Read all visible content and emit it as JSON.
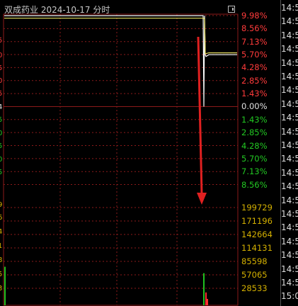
{
  "header": {
    "title": "双成药业  2024-10-17 分时"
  },
  "price_axis": [
    {
      "label": "9.98%",
      "color": "#ff3b3b"
    },
    {
      "label": "8.56%",
      "color": "#ff3b3b"
    },
    {
      "label": "7.13%",
      "color": "#ff3b3b"
    },
    {
      "label": "5.70%",
      "color": "#ff3b3b"
    },
    {
      "label": "4.28%",
      "color": "#ff3b3b"
    },
    {
      "label": "2.85%",
      "color": "#ff3b3b"
    },
    {
      "label": "1.43%",
      "color": "#ff3b3b"
    },
    {
      "label": "0.00%",
      "color": "#e0e0e0"
    },
    {
      "label": "1.43%",
      "color": "#22c822"
    },
    {
      "label": "2.85%",
      "color": "#22c822"
    },
    {
      "label": "4.28%",
      "color": "#22c822"
    },
    {
      "label": "5.70%",
      "color": "#22c822"
    },
    {
      "label": "7.13%",
      "color": "#22c822"
    },
    {
      "label": "8.56%",
      "color": "#22c822"
    }
  ],
  "volume_axis": [
    "199729",
    "171196",
    "142664",
    "114131",
    "85598",
    "57065",
    "28533"
  ],
  "volume_axis_color": "#d4b000",
  "time_column": [
    "14:5",
    "14:5",
    "14:5",
    "14:5",
    "14:5",
    "14:5",
    "14:5",
    "14:5",
    "14:5",
    "14:5",
    "14:5",
    "14:5",
    "14:5",
    "14:5",
    "14:5",
    "14:5",
    "14:5",
    "14:5",
    "14:5",
    "14:5",
    "14:5",
    "15:0"
  ],
  "left_marks": [
    {
      "label": "5",
      "color": "#ff3b3b"
    },
    {
      "label": "0",
      "color": "#ff3b3b"
    },
    {
      "label": "5",
      "color": "#ff3b3b"
    },
    {
      "label": "0",
      "color": "#ff3b3b"
    },
    {
      "label": "5",
      "color": "#ff3b3b"
    },
    {
      "label": "4",
      "color": "#e0e0e0"
    },
    {
      "label": "5",
      "color": "#22c822"
    },
    {
      "label": "0",
      "color": "#22c822"
    },
    {
      "label": "5",
      "color": "#22c822"
    },
    {
      "label": "0",
      "color": "#22c822"
    },
    {
      "label": "5",
      "color": "#22c822"
    },
    {
      "label": "9",
      "color": "#d4b000"
    },
    {
      "label": "6",
      "color": "#d4b000"
    },
    {
      "label": "4",
      "color": "#d4b000"
    },
    {
      "label": "1",
      "color": "#d4b000"
    },
    {
      "label": "8",
      "color": "#d4b000"
    },
    {
      "label": "5",
      "color": "#d4b000"
    },
    {
      "label": "3",
      "color": "#d4b000"
    }
  ],
  "colors": {
    "price_line": "#ffffff",
    "avg_line": "#e8e060",
    "grid": "#8b1a1a",
    "arrow": "#e02020",
    "up_bar": "#ff3030",
    "down_bar": "#20c020"
  },
  "chart_data": {
    "type": "line",
    "title": "双成药业  2024-10-17 分时",
    "y_axis_ticks_pct": [
      9.98,
      8.56,
      7.13,
      5.7,
      4.28,
      2.85,
      1.43,
      0.0,
      -1.43,
      -2.85,
      -4.28,
      -5.7,
      -7.13,
      -8.56
    ],
    "volume_ticks": [
      199729,
      171196,
      142664,
      114131,
      85598,
      57065,
      28533
    ],
    "series": [
      {
        "values_pct": [
          9.98,
          9.98,
          9.98,
          9.98,
          9.98,
          0.0,
          9.98,
          5.7,
          5.5,
          5.7,
          5.7,
          5.7,
          5.7
        ]
      },
      {
        "values_pct": [
          9.7,
          9.7,
          9.7,
          9.7,
          9.7,
          9.7,
          9.7,
          9.6,
          5.8,
          5.9,
          5.9,
          5.9,
          5.9
        ]
      }
    ]
  }
}
